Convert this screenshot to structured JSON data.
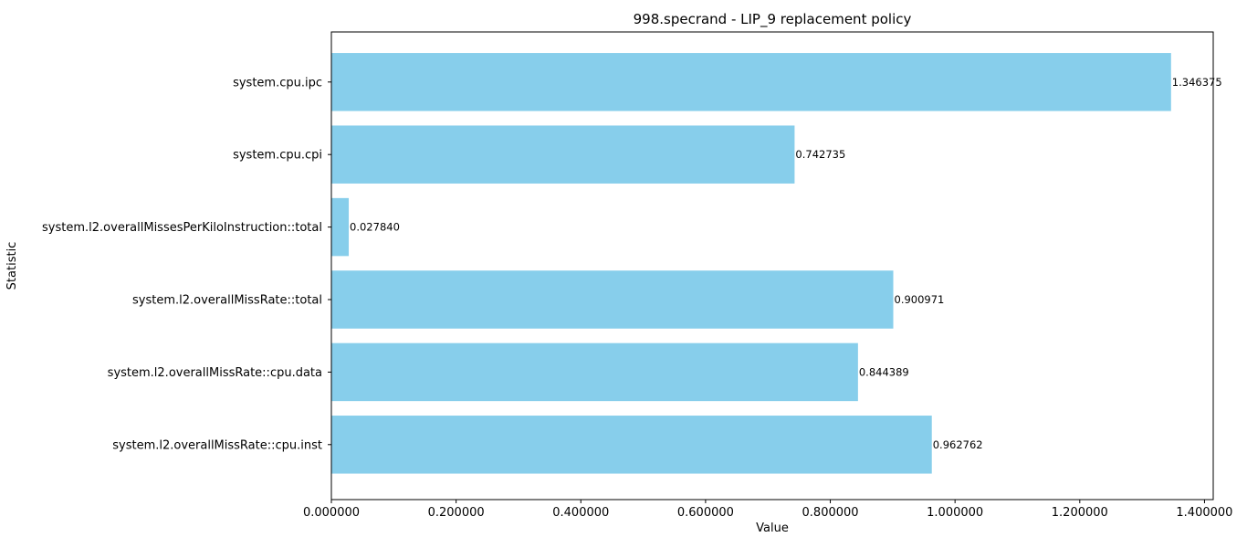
{
  "chart_data": {
    "type": "bar",
    "orientation": "horizontal",
    "title": "998.specrand - LIP_9 replacement policy",
    "xlabel": "Value",
    "ylabel": "Statistic",
    "xlim": [
      0,
      1.414
    ],
    "xticks": [
      0,
      0.2,
      0.4,
      0.6,
      0.8,
      1.0,
      1.2,
      1.4
    ],
    "xtick_labels": [
      "0.000000",
      "0.200000",
      "0.400000",
      "0.600000",
      "0.800000",
      "1.000000",
      "1.200000",
      "1.400000"
    ],
    "categories": [
      "system.cpu.ipc",
      "system.cpu.cpi",
      "system.l2.overallMissesPerKiloInstruction::total",
      "system.l2.overallMissRate::total",
      "system.l2.overallMissRate::cpu.data",
      "system.l2.overallMissRate::cpu.inst"
    ],
    "values": [
      1.346375,
      0.742735,
      0.02784,
      0.900971,
      0.844389,
      0.962762
    ],
    "value_labels": [
      "1.346375",
      "0.742735",
      "0.027840",
      "0.900971",
      "0.844389",
      "0.962762"
    ],
    "bar_color": "#87ceeb",
    "grid": false,
    "legend": "none"
  }
}
